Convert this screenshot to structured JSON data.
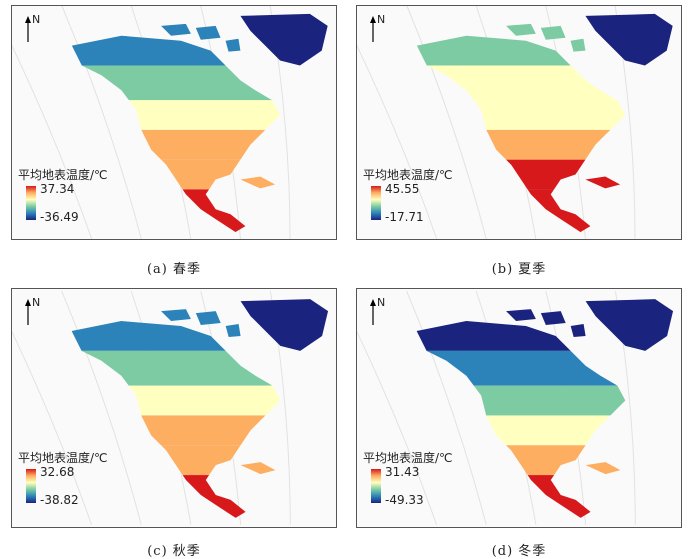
{
  "north_label": "N",
  "legend_title": "平均地表温度/℃",
  "panels": [
    {
      "caption": "(a) 春季",
      "max": "37.34",
      "min": "-36.49",
      "season": "spring"
    },
    {
      "caption": "(b) 夏季",
      "max": "45.55",
      "min": "-17.71",
      "season": "summer"
    },
    {
      "caption": "(c) 秋季",
      "max": "32.68",
      "min": "-38.82",
      "season": "autumn"
    },
    {
      "caption": "(d) 冬季",
      "max": "31.43",
      "min": "-49.33",
      "season": "winter"
    }
  ],
  "colors": {
    "hot": "#d7191c",
    "warm": "#fdae61",
    "mild": "#ffffbf",
    "cool": "#7ccba2",
    "cold": "#2b83ba",
    "frozen": "#1a237e"
  }
}
